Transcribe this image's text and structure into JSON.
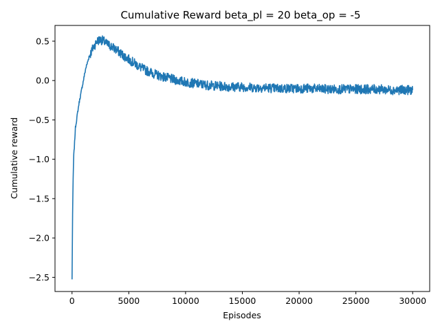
{
  "chart_data": {
    "type": "line",
    "title": "Cumulative Reward beta_pl = 20 beta_op = -5",
    "xlabel": "Episodes",
    "ylabel": "Cumulative reward",
    "xlim": [
      -1500,
      31500
    ],
    "ylim": [
      -2.68,
      0.7
    ],
    "xticks": [
      0,
      5000,
      10000,
      15000,
      20000,
      25000,
      30000
    ],
    "xtick_labels": [
      "0",
      "5000",
      "10000",
      "15000",
      "20000",
      "25000",
      "30000"
    ],
    "yticks": [
      -2.5,
      -2.0,
      -1.5,
      -1.0,
      -0.5,
      0.0,
      0.5
    ],
    "ytick_labels": [
      "−2.5",
      "−2.0",
      "−1.5",
      "−1.0",
      "−0.5",
      "0.0",
      "0.5"
    ],
    "grid": false,
    "color": "#1f77b4",
    "series": [
      {
        "x": [
          0,
          50,
          100,
          150,
          200,
          300,
          400,
          500,
          600,
          800,
          1000,
          1200,
          1500,
          1800,
          2000,
          2200,
          2500,
          2800,
          3000,
          3500,
          4000,
          4500,
          5000,
          5500,
          6000,
          6500,
          7000,
          7500,
          8000,
          9000,
          10000,
          11000,
          12000,
          13000,
          14000,
          15000,
          16000,
          17000,
          18000,
          19000,
          20000,
          21000,
          22000,
          23000,
          24000,
          25000,
          26000,
          27000,
          28000,
          29000,
          30000
        ],
        "values": [
          -2.53,
          -1.7,
          -1.25,
          -0.95,
          -0.85,
          -0.6,
          -0.5,
          -0.4,
          -0.3,
          -0.15,
          0.0,
          0.15,
          0.3,
          0.4,
          0.45,
          0.5,
          0.52,
          0.5,
          0.47,
          0.43,
          0.38,
          0.32,
          0.27,
          0.22,
          0.17,
          0.13,
          0.1,
          0.07,
          0.05,
          0.01,
          -0.02,
          -0.04,
          -0.06,
          -0.07,
          -0.08,
          -0.08,
          -0.09,
          -0.09,
          -0.1,
          -0.1,
          -0.1,
          -0.1,
          -0.11,
          -0.11,
          -0.11,
          -0.11,
          -0.11,
          -0.11,
          -0.12,
          -0.12,
          -0.12
        ]
      }
    ]
  }
}
